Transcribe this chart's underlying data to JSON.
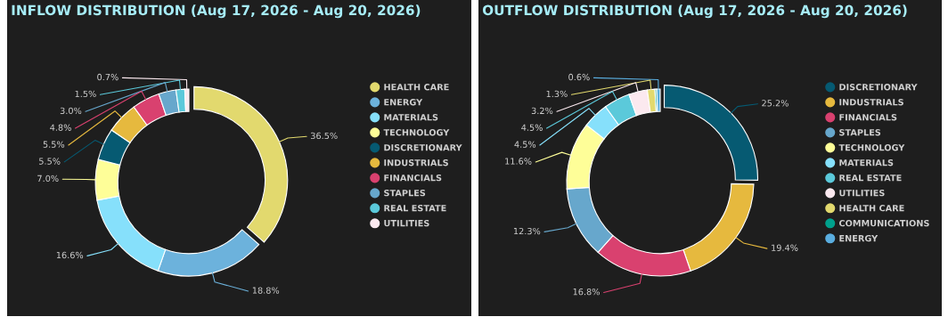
{
  "chart_data": [
    {
      "type": "donut",
      "title": "INFLOW DISTRIBUTION (Aug 17, 2026 - Aug 20, 2026)",
      "legend": "right",
      "data_labels": true,
      "categories": [
        "HEALTH CARE",
        "ENERGY",
        "MATERIALS",
        "TECHNOLOGY",
        "DISCRETIONARY",
        "INDUSTRIALS",
        "FINANCIALS",
        "STAPLES",
        "REAL ESTATE",
        "UTILITIES"
      ],
      "values": [
        36.5,
        18.8,
        16.6,
        7.0,
        5.5,
        5.5,
        4.8,
        3.0,
        1.5,
        0.7
      ],
      "value_labels": [
        "36.5%",
        "18.8%",
        "16.6%",
        "7.0%",
        "5.5%",
        "5.5%",
        "4.8%",
        "3.0%",
        "1.5%",
        "0.7%"
      ],
      "colors": [
        "#e2d96e",
        "#6cb2dc",
        "#86e0fb",
        "#fefe98",
        "#065a72",
        "#e6b93e",
        "#d9416f",
        "#67a7cc",
        "#5bc9da",
        "#fbe9ef"
      ]
    },
    {
      "type": "donut",
      "title": "OUTFLOW DISTRIBUTION (Aug 17, 2026 - Aug 20, 2026)",
      "legend": "right",
      "data_labels": true,
      "categories": [
        "DISCRETIONARY",
        "INDUSTRIALS",
        "FINANCIALS",
        "STAPLES",
        "TECHNOLOGY",
        "MATERIALS",
        "REAL ESTATE",
        "UTILITIES",
        "HEALTH CARE",
        "COMMUNICATIONS",
        "ENERGY"
      ],
      "values": [
        25.2,
        19.4,
        16.8,
        12.3,
        11.6,
        4.5,
        4.5,
        3.2,
        1.3,
        0.3,
        0.6
      ],
      "value_labels": [
        "25.2%",
        "19.4%",
        "16.8%",
        "12.3%",
        "11.6%",
        "4.5%",
        "4.5%",
        "3.2%",
        "1.3%",
        null,
        "0.6%"
      ],
      "colors": [
        "#065a72",
        "#e6b93e",
        "#d9416f",
        "#67a7cc",
        "#fefe98",
        "#86e0fb",
        "#5bc9da",
        "#fbe9ef",
        "#e2d96e",
        "#00a08c",
        "#5aaee0"
      ]
    }
  ]
}
